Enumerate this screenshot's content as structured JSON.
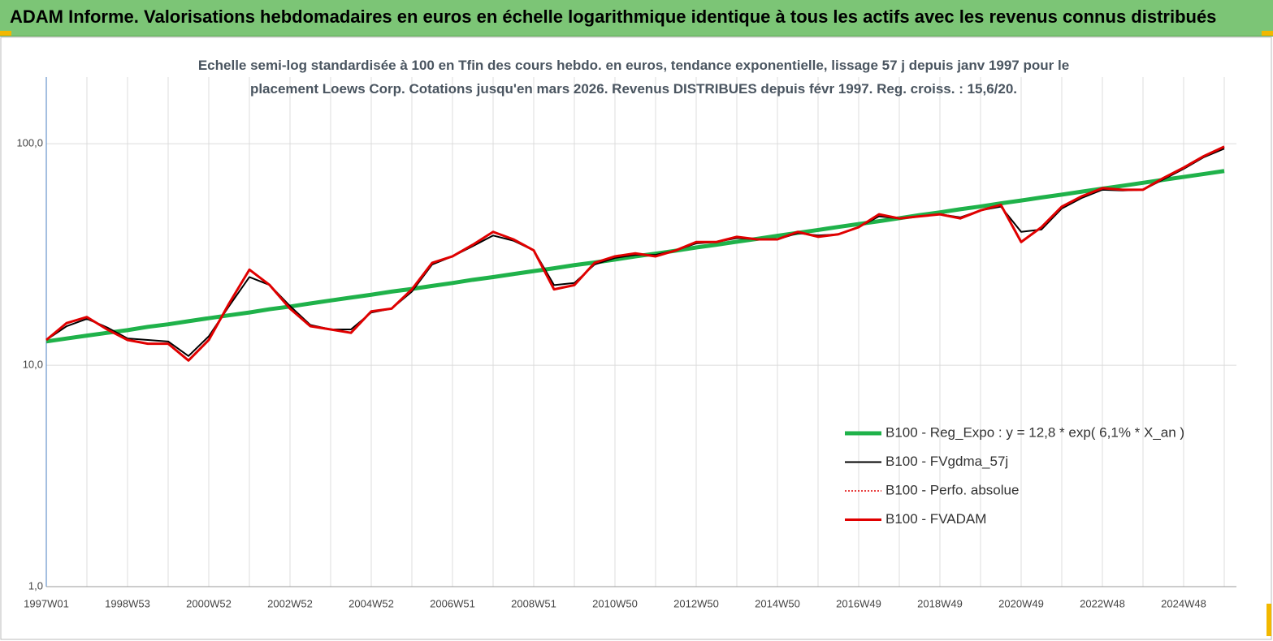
{
  "chart_data": {
    "type": "line",
    "title": "ADAM Informe. Valorisations hebdomadaires en euros en échelle logarithmique identique à tous les actifs avec les revenus connus distribués",
    "subtitle": "Echelle semi-log standardisée à 100 en Tfin des cours hebdo. en euros, tendance exponentielle, lissage 57 j depuis janv 1997 pour le placement Loews Corp. Cotations jusqu'en mars 2026. Revenus DISTRIBUES depuis févr 1997. Reg. croiss. : 15,6/20.",
    "categories": [
      "1997W01",
      null,
      null,
      null,
      "1998W53",
      null,
      null,
      null,
      "2000W52",
      null,
      null,
      null,
      "2002W52",
      null,
      null,
      null,
      "2004W52",
      null,
      null,
      null,
      "2006W51",
      null,
      null,
      null,
      "2008W51",
      null,
      null,
      null,
      "2010W50",
      null,
      null,
      null,
      "2012W50",
      null,
      null,
      null,
      "2014W50",
      null,
      null,
      null,
      "2016W49",
      null,
      null,
      null,
      "2018W49",
      null,
      null,
      null,
      "2020W49",
      null,
      null,
      null,
      "2022W48",
      null,
      null,
      null,
      "2024W48",
      null,
      null
    ],
    "y_scale": "log",
    "ylim": [
      1,
      200
    ],
    "yticks": [
      {
        "value": 1,
        "label": "1,0"
      },
      {
        "value": 10,
        "label": "10,0"
      },
      {
        "value": 100,
        "label": "100,0"
      }
    ],
    "grid": true,
    "legend": "lower right",
    "series": [
      {
        "name": "B100 - Reg_Expo : y = 12,8 * exp( 6,1% *  X_an )",
        "color": "#1fb24a",
        "style": "solid",
        "values": [
          12.8,
          13.2,
          13.6,
          14.0,
          14.4,
          14.9,
          15.3,
          15.8,
          16.3,
          16.8,
          17.3,
          17.9,
          18.4,
          19.0,
          19.6,
          20.2,
          20.8,
          21.5,
          22.1,
          22.8,
          23.5,
          24.3,
          25.0,
          25.8,
          26.6,
          27.4,
          28.3,
          29.1,
          30.0,
          31.0,
          31.9,
          32.9,
          34.0,
          35.0,
          36.1,
          37.2,
          38.4,
          39.6,
          40.8,
          42.1,
          43.4,
          44.7,
          46.1,
          47.6,
          49.0,
          50.6,
          52.1,
          53.8,
          55.4,
          57.2,
          58.9,
          60.8,
          62.7,
          64.6,
          66.6,
          68.7,
          70.8,
          73.0,
          75.3
        ]
      },
      {
        "name": "B100 - FVgdma_57j",
        "color": "#000000",
        "style": "solid",
        "values": [
          13,
          15,
          16.2,
          14.8,
          13.2,
          13,
          12.8,
          11,
          13.5,
          18.5,
          25,
          23,
          18.5,
          15.2,
          14.5,
          14.5,
          17.3,
          18,
          21.5,
          28.5,
          31,
          34.5,
          38.5,
          36.5,
          33,
          23,
          23.5,
          28.5,
          30.5,
          31.5,
          31.5,
          33,
          35.5,
          36,
          37.5,
          37,
          37,
          39.5,
          38.5,
          39,
          42,
          47,
          46,
          47,
          48,
          46.5,
          50,
          52,
          40,
          41,
          51,
          57,
          62,
          61.5,
          62,
          69,
          77,
          87,
          95
        ]
      },
      {
        "name": "B100 - Perfo. absolue",
        "color": "#e00000",
        "style": "dotted",
        "values": [
          13,
          15.5,
          16.5,
          14.5,
          13,
          12.5,
          12.5,
          10.5,
          13,
          19,
          27,
          23,
          18,
          15,
          14.5,
          14,
          17.5,
          18,
          22,
          29,
          31,
          35,
          40,
          37,
          33,
          22,
          23,
          29,
          31,
          32,
          31,
          33,
          36,
          36,
          38,
          37,
          37,
          40,
          38,
          39,
          42,
          48,
          46,
          47,
          48,
          46,
          50,
          53,
          36,
          42,
          52,
          58,
          63,
          62,
          62,
          70,
          78,
          88,
          97
        ]
      },
      {
        "name": "B100 - FVADAM",
        "color": "#e00000",
        "style": "solid",
        "values": [
          13,
          15.5,
          16.5,
          14.5,
          13,
          12.5,
          12.5,
          10.5,
          13,
          19,
          27,
          23,
          18,
          15,
          14.5,
          14,
          17.5,
          18,
          22,
          29,
          31,
          35,
          40,
          37,
          33,
          22,
          23,
          29,
          31,
          32,
          31,
          33,
          36,
          36,
          38,
          37,
          37,
          40,
          38,
          39,
          42,
          48,
          46,
          47,
          48,
          46,
          50,
          53,
          36,
          42,
          52,
          58,
          63,
          62,
          62,
          70,
          78,
          88,
          97
        ]
      }
    ]
  }
}
